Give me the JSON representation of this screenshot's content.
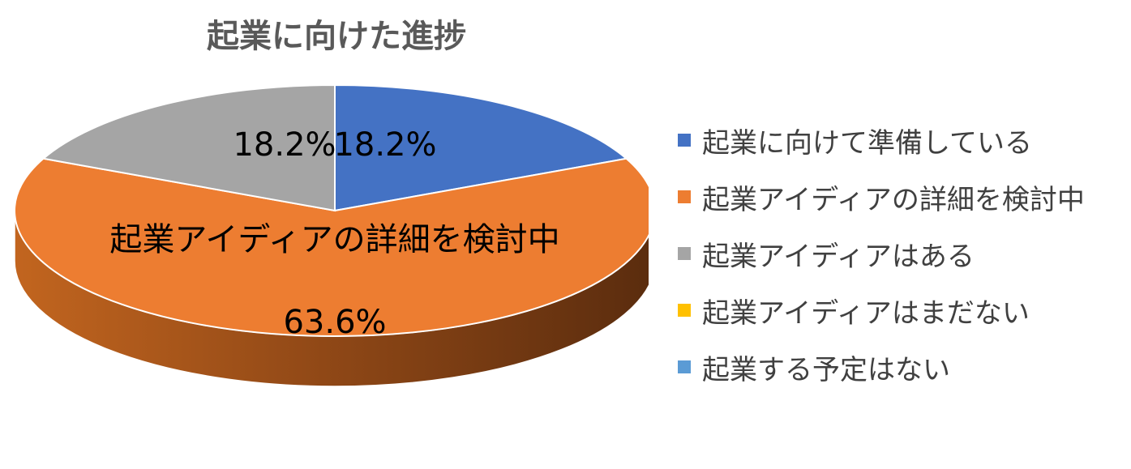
{
  "chart_data": {
    "type": "pie",
    "title": "起業に向けた進捗",
    "categories": [
      "起業に向けて準備している",
      "起業アイディアの詳細を検討中",
      "起業アイディアはある",
      "起業アイディアはまだない",
      "起業する予定はない"
    ],
    "values": [
      18.2,
      63.6,
      18.2,
      0,
      0
    ],
    "data_labels": [
      "18.2%",
      "63.6%",
      "18.2%",
      "",
      ""
    ],
    "category_label_on_slice": "起業アイディアの詳細を検討中",
    "colors": [
      "#4472C4",
      "#ED7D31",
      "#A5A5A5",
      "#FFC000",
      "#5B9BD5"
    ],
    "legend_position": "right",
    "style": "3d"
  }
}
